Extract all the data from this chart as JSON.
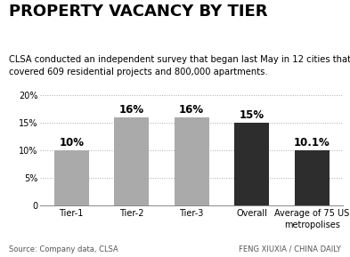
{
  "title": "PROPERTY VACANCY BY TIER",
  "subtitle": "CLSA conducted an independent survey that began last May in 12 cities that\ncovered 609 residential projects and 800,000 apartments.",
  "categories": [
    "Tier-1",
    "Tier-2",
    "Tier-3",
    "Overall",
    "Average of 75 US\nmetropolises"
  ],
  "values": [
    10,
    16,
    16,
    15,
    10.1
  ],
  "labels": [
    "10%",
    "16%",
    "16%",
    "15%",
    "10.1%"
  ],
  "bar_colors": [
    "#aaaaaa",
    "#aaaaaa",
    "#aaaaaa",
    "#2d2d2d",
    "#2d2d2d"
  ],
  "ylim": [
    0,
    21
  ],
  "yticks": [
    0,
    5,
    10,
    15,
    20
  ],
  "ytick_labels": [
    "0",
    "5%",
    "10%",
    "15%",
    "20%"
  ],
  "source_left": "Source: Company data, CLSA",
  "source_right": "FENG XIUXIA / CHINA DAILY",
  "background_color": "#ffffff",
  "grid_color": "#aaaaaa",
  "title_fontsize": 13,
  "subtitle_fontsize": 7.2,
  "label_fontsize": 8.5,
  "tick_fontsize": 7.0,
  "source_fontsize": 6.0
}
